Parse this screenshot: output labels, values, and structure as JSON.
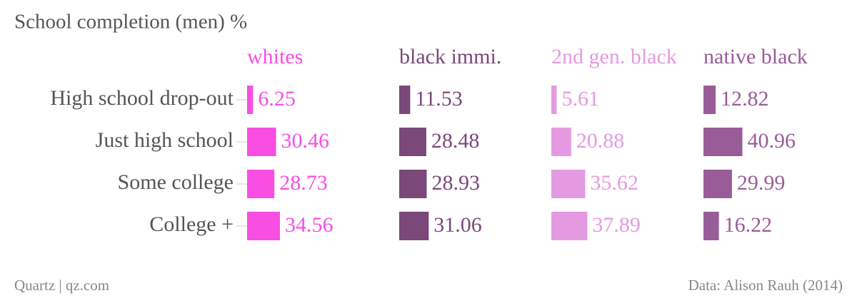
{
  "chart_data": {
    "type": "bar",
    "title": "School completion (men) %",
    "categories": [
      "High school drop-out",
      "Just high school",
      "Some college",
      "College +"
    ],
    "series": [
      {
        "name": "whites",
        "color": "#f84ee2",
        "values": [
          6.25,
          30.46,
          28.73,
          34.56
        ]
      },
      {
        "name": "black immi.",
        "color": "#7a4879",
        "values": [
          11.53,
          28.48,
          28.93,
          31.06
        ]
      },
      {
        "name": "2nd gen. black",
        "color": "#e49ae0",
        "values": [
          5.61,
          20.88,
          35.62,
          37.89
        ]
      },
      {
        "name": "native black",
        "color": "#985c98",
        "values": [
          12.82,
          40.96,
          29.99,
          16.22
        ]
      }
    ],
    "source_left": "Quartz | qz.com",
    "source_right": "Data: Alison Rauh (2014)"
  }
}
